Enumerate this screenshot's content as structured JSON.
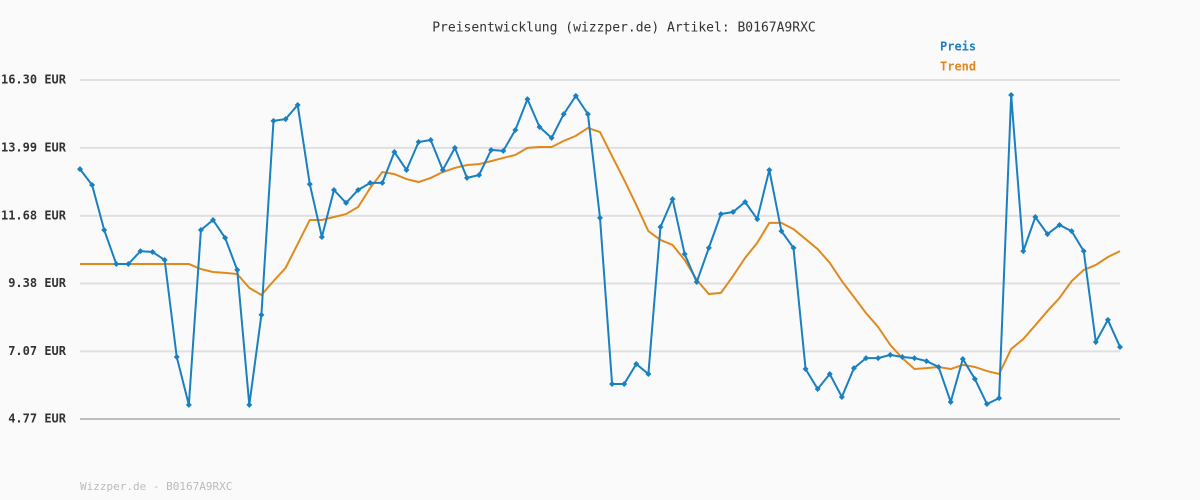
{
  "chart_data": {
    "type": "line",
    "title": "Preisentwicklung (wizzper.de) Artikel: B0167A9RXC",
    "footer": "Wizzper.de - B0167A9RXC",
    "categories": [
      null,
      null,
      null,
      null,
      null,
      null,
      null,
      null,
      null,
      null,
      null,
      null,
      null,
      null,
      null,
      null,
      null,
      null,
      null,
      null,
      null,
      null,
      null,
      null,
      null,
      null,
      null,
      null,
      null,
      null,
      null,
      null,
      null,
      null,
      null,
      null,
      null,
      null,
      null,
      null,
      null,
      null,
      null,
      null,
      null,
      null,
      null,
      null,
      null,
      null,
      null,
      null,
      null,
      null,
      null,
      null,
      null,
      null,
      null,
      null,
      null,
      null,
      null,
      null,
      null,
      null,
      null,
      null,
      null,
      null,
      null,
      null,
      null,
      null,
      null,
      null,
      null,
      null,
      null,
      null,
      null,
      null,
      null,
      null,
      null,
      null,
      null
    ],
    "series": [
      {
        "name": "Preis",
        "color": "#1a80c0",
        "markers": true,
        "values": [
          13.27,
          12.73,
          11.2,
          10.04,
          10.04,
          10.48,
          10.45,
          10.18,
          6.88,
          5.25,
          11.2,
          11.54,
          10.93,
          9.84,
          5.25,
          8.31,
          14.91,
          14.97,
          15.45,
          12.76,
          10.96,
          12.56,
          12.12,
          12.56,
          12.8,
          12.8,
          13.85,
          13.24,
          14.19,
          14.26,
          13.24,
          13.99,
          12.97,
          13.07,
          13.92,
          13.89,
          14.6,
          15.65,
          14.7,
          14.33,
          15.14,
          15.76,
          15.14,
          11.61,
          5.96,
          5.96,
          6.64,
          6.3,
          11.3,
          12.25,
          10.38,
          9.43,
          10.59,
          11.74,
          11.81,
          12.15,
          11.57,
          13.24,
          11.16,
          10.59,
          6.47,
          5.79,
          6.3,
          5.52,
          6.5,
          6.84,
          6.84,
          6.95,
          6.88,
          6.84,
          6.74,
          6.54,
          5.35,
          6.81,
          6.13,
          5.28,
          5.48,
          15.79,
          10.48,
          11.64,
          11.06,
          11.37,
          11.16,
          10.48,
          7.39,
          8.14,
          7.22
        ]
      },
      {
        "name": "Trend",
        "color": "#e08a1e",
        "markers": false,
        "values": [
          10.04,
          10.04,
          10.04,
          10.04,
          10.04,
          10.04,
          10.04,
          10.04,
          10.04,
          10.04,
          9.87,
          9.77,
          9.74,
          9.7,
          9.23,
          8.99,
          9.46,
          9.91,
          10.72,
          11.54,
          11.54,
          11.64,
          11.74,
          11.98,
          12.63,
          13.17,
          13.1,
          12.93,
          12.83,
          12.97,
          13.17,
          13.31,
          13.41,
          13.44,
          13.54,
          13.65,
          13.75,
          13.99,
          14.02,
          14.02,
          14.23,
          14.4,
          14.67,
          14.53,
          13.71,
          12.9,
          12.05,
          11.16,
          10.86,
          10.69,
          10.18,
          9.5,
          9.02,
          9.06,
          9.63,
          10.25,
          10.76,
          11.44,
          11.44,
          11.23,
          10.89,
          10.55,
          10.08,
          9.46,
          8.92,
          8.37,
          7.9,
          7.29,
          6.84,
          6.47,
          6.5,
          6.54,
          6.47,
          6.61,
          6.54,
          6.4,
          6.3,
          7.15,
          7.49,
          7.96,
          8.44,
          8.89,
          9.46,
          9.84,
          10.01,
          10.28,
          10.48
        ]
      }
    ],
    "ylim": [
      4.77,
      16.3
    ],
    "yticks": [
      {
        "value": 4.77,
        "label": "4.77 EUR"
      },
      {
        "value": 7.07,
        "label": "7.07 EUR"
      },
      {
        "value": 9.38,
        "label": "9.38 EUR"
      },
      {
        "value": 11.68,
        "label": "11.68 EUR"
      },
      {
        "value": 13.99,
        "label": "13.99 EUR"
      },
      {
        "value": 16.3,
        "label": "16.30 EUR"
      }
    ],
    "grid": true
  }
}
